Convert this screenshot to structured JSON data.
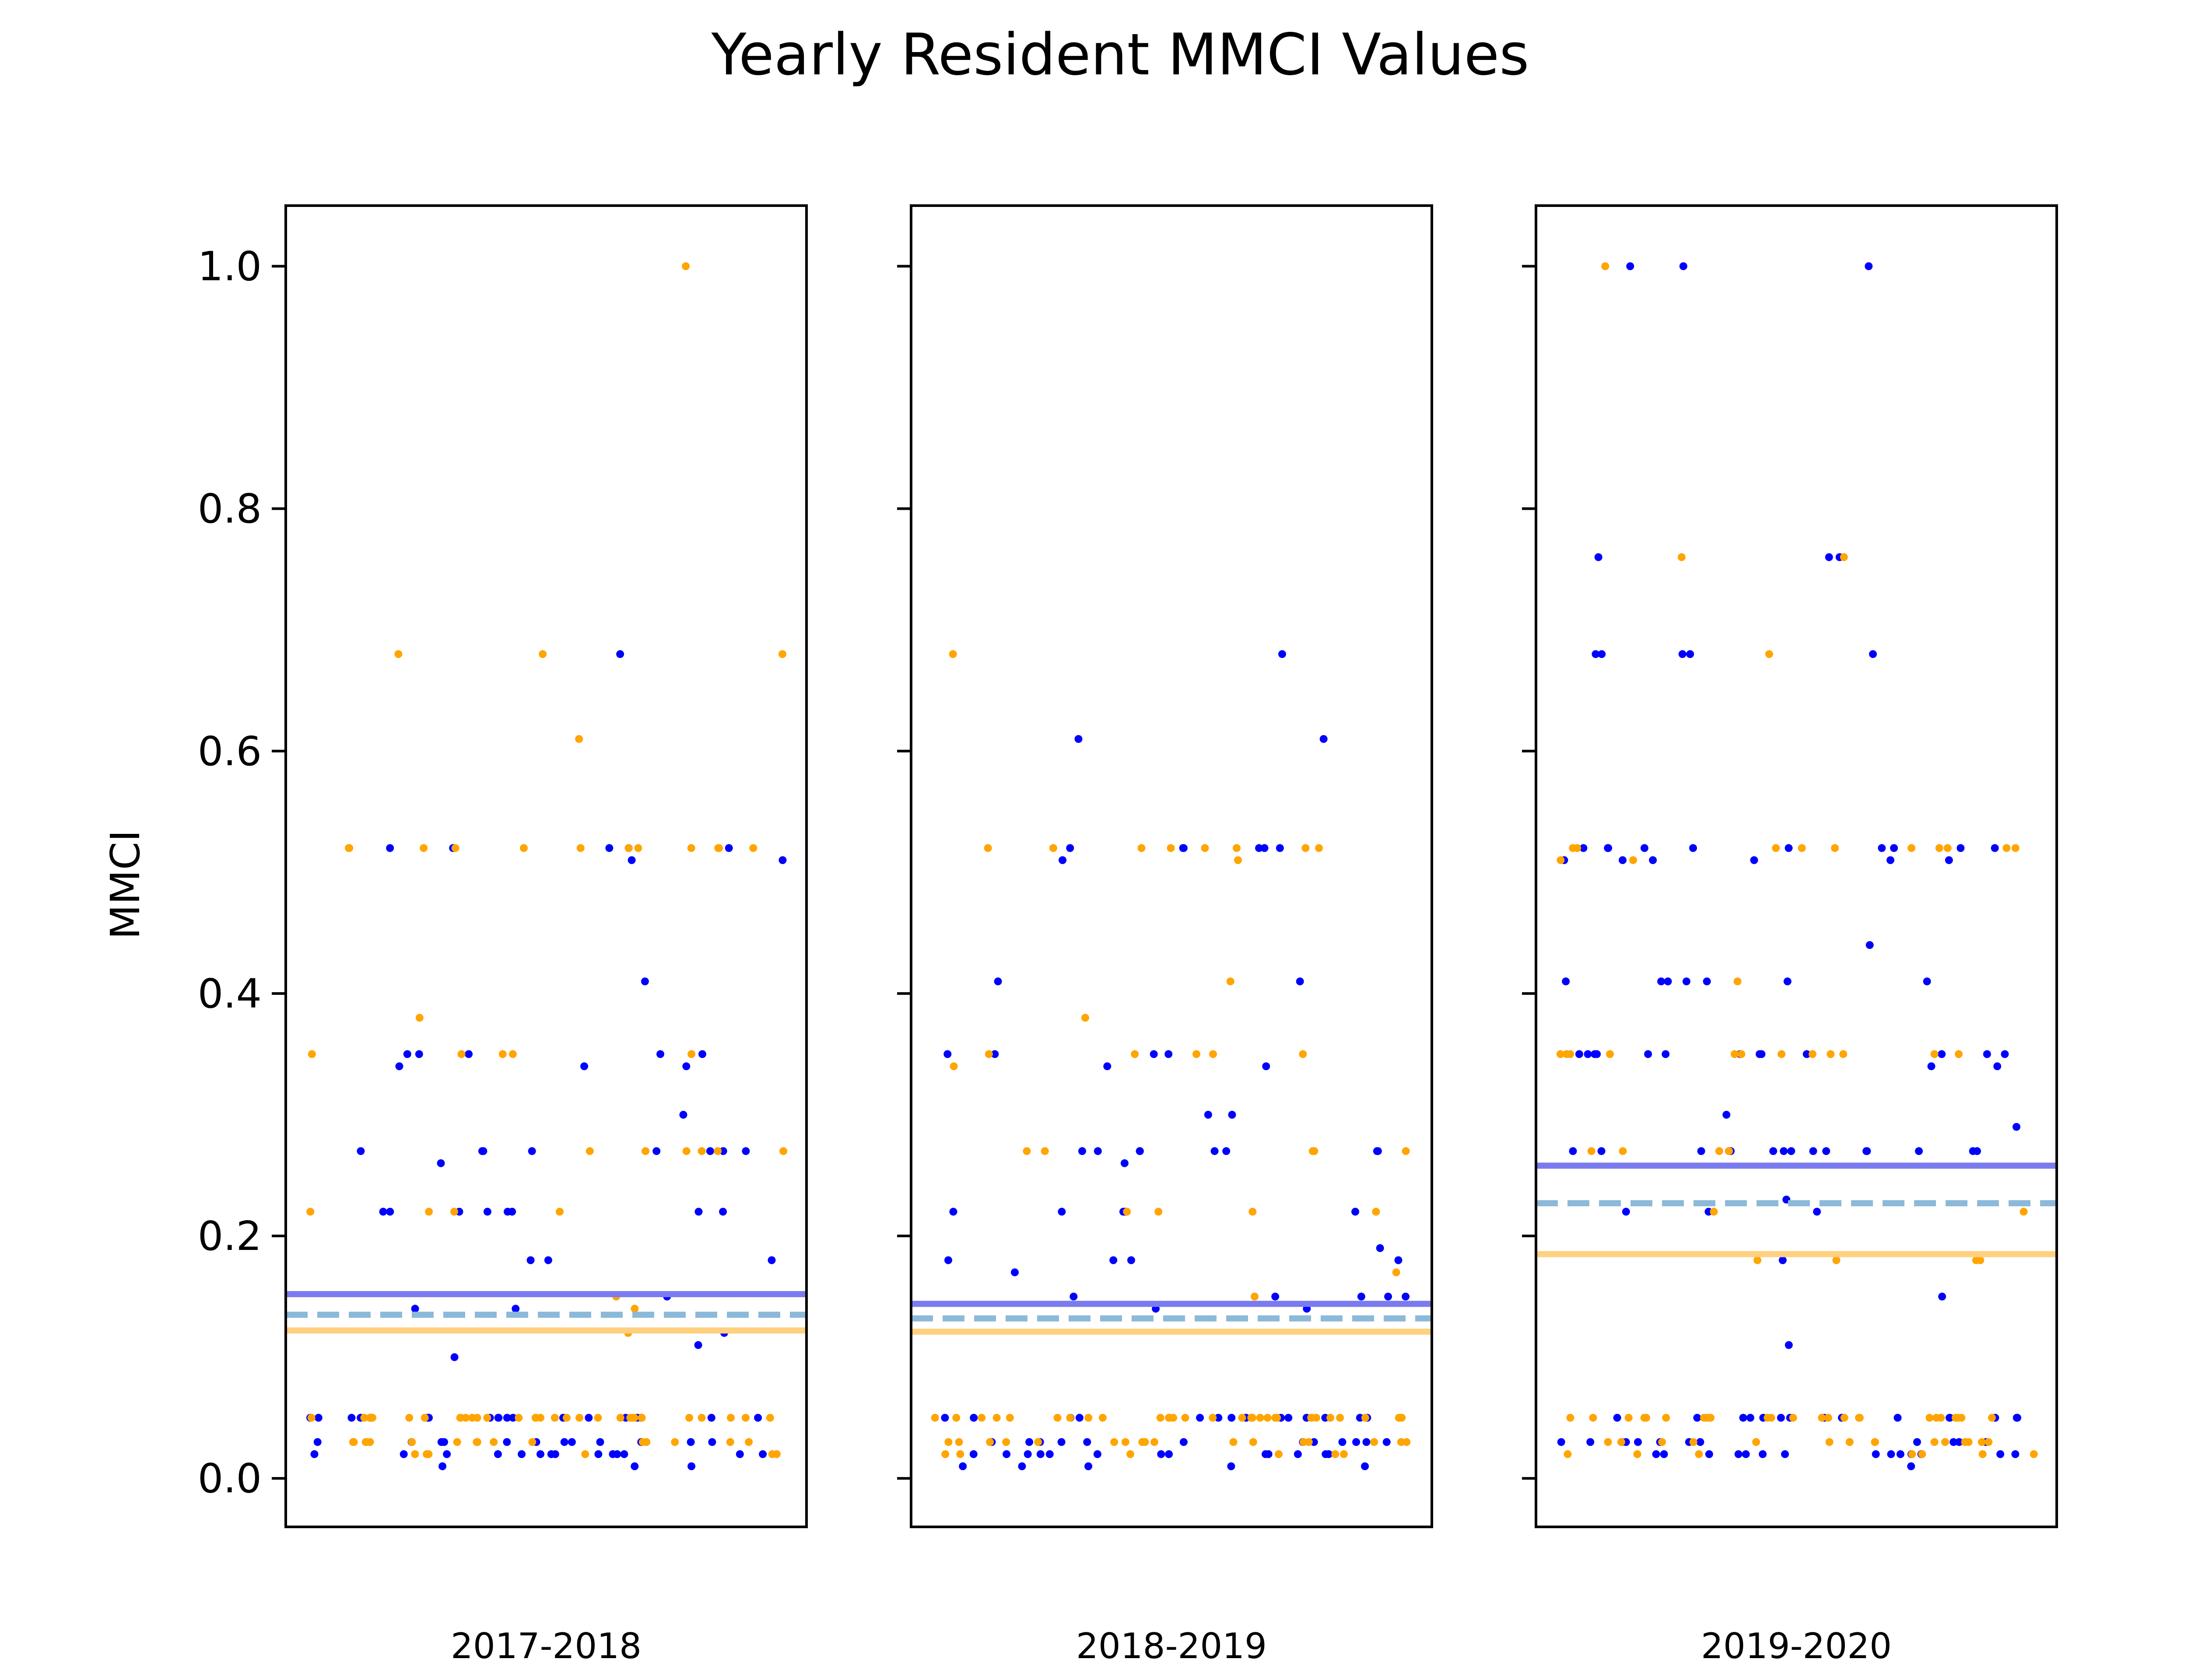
{
  "title": "Yearly Resident MMCI Values",
  "ylabel": "MMCI",
  "colors": {
    "series_a": "#0000ff",
    "series_b": "#ffa500",
    "mean_a": "#7b7bf0",
    "mean_b": "#ffd080",
    "mean_all": "#8cb9d9"
  },
  "chart_data": [
    {
      "type": "scatter",
      "xlabel": "2017-2018",
      "ylabel": "MMCI",
      "ylim": [
        -0.04,
        1.05
      ],
      "yticks": [
        "0.0",
        "0.2",
        "0.4",
        "0.6",
        "0.8",
        "1.0"
      ],
      "grid": false,
      "series": [
        {
          "color": "#0000ff",
          "y": [
            0.68,
            0.52,
            0.52,
            0.51,
            0.51,
            0.52,
            0.52,
            0.52,
            0.41,
            0.35,
            0.35,
            0.35,
            0.34,
            0.34,
            0.34,
            0.35,
            0.35,
            0.3,
            0.27,
            0.27,
            0.27,
            0.27,
            0.27,
            0.27,
            0.26,
            0.27,
            0.27,
            0.22,
            0.22,
            0.22,
            0.22,
            0.22,
            0.22,
            0.22,
            0.22,
            0.18,
            0.18,
            0.18,
            0.15,
            0.14,
            0.14,
            0.12,
            0.11,
            0.1,
            0.05,
            0.05,
            0.05,
            0.05,
            0.05,
            0.05,
            0.05,
            0.05,
            0.05,
            0.05,
            0.05,
            0.05,
            0.05,
            0.05,
            0.05,
            0.05,
            0.05,
            0.05,
            0.05,
            0.05,
            0.03,
            0.03,
            0.03,
            0.03,
            0.03,
            0.03,
            0.03,
            0.03,
            0.03,
            0.03,
            0.03,
            0.03,
            0.02,
            0.02,
            0.02,
            0.02,
            0.02,
            0.02,
            0.02,
            0.02,
            0.02,
            0.02,
            0.02,
            0.02,
            0.02,
            0.02,
            0.01,
            0.01,
            0.01
          ]
        },
        {
          "color": "#ffa500",
          "y": [
            1.0,
            0.68,
            0.68,
            0.68,
            0.61,
            0.52,
            0.52,
            0.52,
            0.52,
            0.52,
            0.52,
            0.52,
            0.52,
            0.52,
            0.52,
            0.52,
            0.52,
            0.38,
            0.35,
            0.35,
            0.35,
            0.35,
            0.35,
            0.27,
            0.27,
            0.27,
            0.27,
            0.27,
            0.27,
            0.22,
            0.22,
            0.22,
            0.22,
            0.15,
            0.14,
            0.12,
            0.05,
            0.05,
            0.05,
            0.05,
            0.05,
            0.05,
            0.05,
            0.05,
            0.05,
            0.05,
            0.05,
            0.05,
            0.05,
            0.05,
            0.05,
            0.05,
            0.05,
            0.05,
            0.05,
            0.05,
            0.05,
            0.05,
            0.05,
            0.05,
            0.05,
            0.05,
            0.05,
            0.05,
            0.05,
            0.05,
            0.03,
            0.03,
            0.03,
            0.03,
            0.03,
            0.03,
            0.03,
            0.03,
            0.03,
            0.03,
            0.03,
            0.03,
            0.03,
            0.03,
            0.03,
            0.03,
            0.02,
            0.02,
            0.02,
            0.02,
            0.02,
            0.02
          ]
        }
      ],
      "mean_lines": [
        {
          "color": "#7b7bf0",
          "style": "solid",
          "y": 0.152
        },
        {
          "color": "#8cb9d9",
          "style": "dashed",
          "y": 0.135
        },
        {
          "color": "#ffd080",
          "style": "solid",
          "y": 0.122
        }
      ]
    },
    {
      "type": "scatter",
      "xlabel": "2018-2019",
      "ylabel": "",
      "ylim": [
        -0.04,
        1.05
      ],
      "yticks": [
        "0.0",
        "0.2",
        "0.4",
        "0.6",
        "0.8",
        "1.0"
      ],
      "grid": false,
      "series": [
        {
          "color": "#0000ff",
          "y": [
            0.68,
            0.61,
            0.61,
            0.52,
            0.52,
            0.52,
            0.52,
            0.52,
            0.52,
            0.51,
            0.41,
            0.41,
            0.35,
            0.35,
            0.35,
            0.35,
            0.34,
            0.34,
            0.3,
            0.3,
            0.27,
            0.27,
            0.27,
            0.27,
            0.27,
            0.27,
            0.27,
            0.27,
            0.26,
            0.22,
            0.22,
            0.22,
            0.22,
            0.22,
            0.19,
            0.18,
            0.18,
            0.18,
            0.18,
            0.17,
            0.15,
            0.15,
            0.15,
            0.15,
            0.15,
            0.14,
            0.14,
            0.05,
            0.05,
            0.05,
            0.05,
            0.05,
            0.05,
            0.05,
            0.05,
            0.05,
            0.05,
            0.05,
            0.05,
            0.05,
            0.05,
            0.05,
            0.03,
            0.03,
            0.03,
            0.03,
            0.03,
            0.03,
            0.03,
            0.03,
            0.03,
            0.03,
            0.03,
            0.03,
            0.02,
            0.02,
            0.02,
            0.02,
            0.02,
            0.02,
            0.02,
            0.02,
            0.02,
            0.02,
            0.02,
            0.02,
            0.02,
            0.01,
            0.01,
            0.01,
            0.01,
            0.01
          ]
        },
        {
          "color": "#ffa500",
          "y": [
            0.68,
            0.52,
            0.52,
            0.52,
            0.52,
            0.52,
            0.52,
            0.52,
            0.52,
            0.51,
            0.41,
            0.38,
            0.35,
            0.35,
            0.35,
            0.35,
            0.35,
            0.34,
            0.27,
            0.27,
            0.27,
            0.27,
            0.27,
            0.22,
            0.22,
            0.22,
            0.22,
            0.17,
            0.15,
            0.05,
            0.05,
            0.05,
            0.05,
            0.05,
            0.05,
            0.05,
            0.05,
            0.05,
            0.05,
            0.05,
            0.05,
            0.05,
            0.05,
            0.05,
            0.05,
            0.05,
            0.05,
            0.05,
            0.05,
            0.05,
            0.05,
            0.05,
            0.05,
            0.05,
            0.05,
            0.05,
            0.05,
            0.05,
            0.05,
            0.05,
            0.03,
            0.03,
            0.03,
            0.03,
            0.03,
            0.03,
            0.03,
            0.03,
            0.03,
            0.03,
            0.03,
            0.03,
            0.03,
            0.03,
            0.03,
            0.03,
            0.03,
            0.02,
            0.02,
            0.02,
            0.02,
            0.02,
            0.02
          ]
        }
      ],
      "mean_lines": [
        {
          "color": "#7b7bf0",
          "style": "solid",
          "y": 0.144
        },
        {
          "color": "#8cb9d9",
          "style": "dashed",
          "y": 0.132
        },
        {
          "color": "#ffd080",
          "style": "solid",
          "y": 0.121
        }
      ]
    },
    {
      "type": "scatter",
      "xlabel": "2019-2020",
      "ylabel": "",
      "ylim": [
        -0.04,
        1.05
      ],
      "yticks": [
        "0.0",
        "0.2",
        "0.4",
        "0.6",
        "0.8",
        "1.0"
      ],
      "grid": false,
      "series": [
        {
          "color": "#0000ff",
          "y": [
            1.0,
            1.0,
            1.0,
            0.76,
            0.76,
            0.76,
            0.68,
            0.68,
            0.68,
            0.68,
            0.68,
            0.52,
            0.52,
            0.52,
            0.52,
            0.52,
            0.52,
            0.52,
            0.52,
            0.52,
            0.52,
            0.51,
            0.51,
            0.51,
            0.51,
            0.51,
            0.51,
            0.44,
            0.41,
            0.41,
            0.41,
            0.41,
            0.41,
            0.41,
            0.41,
            0.35,
            0.35,
            0.35,
            0.35,
            0.35,
            0.35,
            0.35,
            0.35,
            0.35,
            0.35,
            0.35,
            0.35,
            0.35,
            0.34,
            0.34,
            0.3,
            0.29,
            0.27,
            0.27,
            0.27,
            0.27,
            0.27,
            0.27,
            0.27,
            0.27,
            0.27,
            0.27,
            0.27,
            0.27,
            0.27,
            0.27,
            0.27,
            0.23,
            0.22,
            0.22,
            0.22,
            0.18,
            0.15,
            0.11,
            0.05,
            0.05,
            0.05,
            0.05,
            0.05,
            0.05,
            0.05,
            0.05,
            0.05,
            0.05,
            0.05,
            0.05,
            0.05,
            0.05,
            0.05,
            0.05,
            0.03,
            0.03,
            0.03,
            0.03,
            0.03,
            0.03,
            0.03,
            0.03,
            0.03,
            0.03,
            0.03,
            0.03,
            0.02,
            0.02,
            0.02,
            0.02,
            0.02,
            0.02,
            0.02,
            0.02,
            0.02,
            0.02,
            0.02,
            0.02,
            0.02,
            0.02,
            0.01
          ]
        },
        {
          "color": "#ffa500",
          "y": [
            1.0,
            0.76,
            0.76,
            0.68,
            0.52,
            0.52,
            0.52,
            0.52,
            0.52,
            0.52,
            0.52,
            0.52,
            0.52,
            0.52,
            0.51,
            0.51,
            0.41,
            0.35,
            0.35,
            0.35,
            0.35,
            0.35,
            0.35,
            0.35,
            0.35,
            0.35,
            0.35,
            0.35,
            0.35,
            0.27,
            0.27,
            0.27,
            0.27,
            0.22,
            0.22,
            0.18,
            0.18,
            0.18,
            0.18,
            0.05,
            0.05,
            0.05,
            0.05,
            0.05,
            0.05,
            0.05,
            0.05,
            0.05,
            0.05,
            0.05,
            0.05,
            0.05,
            0.05,
            0.05,
            0.05,
            0.05,
            0.05,
            0.05,
            0.05,
            0.05,
            0.05,
            0.05,
            0.05,
            0.05,
            0.03,
            0.03,
            0.03,
            0.03,
            0.03,
            0.03,
            0.03,
            0.03,
            0.03,
            0.03,
            0.03,
            0.03,
            0.03,
            0.03,
            0.03,
            0.02,
            0.02,
            0.02,
            0.02,
            0.02,
            0.02,
            0.02
          ]
        }
      ],
      "mean_lines": [
        {
          "color": "#7b7bf0",
          "style": "solid",
          "y": 0.258
        },
        {
          "color": "#8cb9d9",
          "style": "dashed",
          "y": 0.227
        },
        {
          "color": "#ffd080",
          "style": "solid",
          "y": 0.185
        }
      ]
    }
  ]
}
